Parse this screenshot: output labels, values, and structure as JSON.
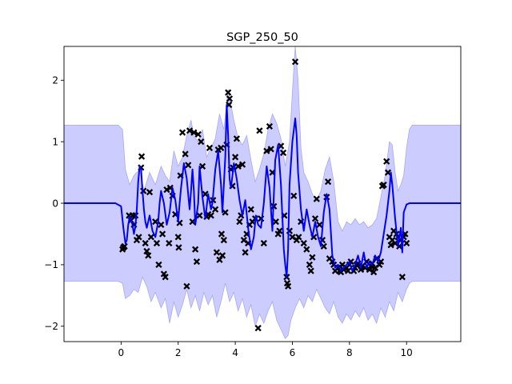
{
  "chart_data": {
    "type": "line",
    "title": "SGP_250_50",
    "xlabel": "",
    "ylabel": "",
    "xlim": [
      -2.0,
      11.9
    ],
    "ylim": [
      -2.25,
      2.55
    ],
    "xticks": [
      0,
      2,
      4,
      6,
      8,
      10
    ],
    "yticks": [
      -2,
      -1,
      0,
      1,
      2
    ],
    "xtick_labels": [
      "0",
      "2",
      "4",
      "6",
      "8",
      "10"
    ],
    "ytick_labels": [
      "−2",
      "−1",
      "0",
      "1",
      "2"
    ],
    "grid": false,
    "legend": "none",
    "colors": {
      "mean_line": "#0000ff",
      "band_fill": "#ccccff",
      "band_edge": "#a8a8f4",
      "points": "#000000"
    },
    "series": [
      {
        "kind": "mean",
        "x": [
          -2.0,
          -1.0,
          -0.2,
          0.0,
          0.08,
          0.15,
          0.2,
          0.25,
          0.3,
          0.38,
          0.45,
          0.5,
          0.55,
          0.6,
          0.65,
          0.7,
          0.75,
          0.8,
          0.85,
          0.9,
          1.0,
          1.1,
          1.2,
          1.3,
          1.35,
          1.4,
          1.5,
          1.6,
          1.7,
          1.8,
          1.9,
          2.0,
          2.05,
          2.1,
          2.2,
          2.3,
          2.4,
          2.45,
          2.5,
          2.55,
          2.6,
          2.7,
          2.75,
          2.85,
          2.95,
          3.05,
          3.15,
          3.2,
          3.3,
          3.4,
          3.5,
          3.55,
          3.65,
          3.7,
          3.75,
          3.8,
          3.85,
          3.95,
          4.05,
          4.15,
          4.25,
          4.35,
          4.45,
          4.55,
          4.65,
          4.72,
          4.8,
          4.9,
          5.0,
          5.1,
          5.2,
          5.3,
          5.4,
          5.5,
          5.6,
          5.7,
          5.75,
          5.8,
          5.85,
          5.9,
          6.0,
          6.1,
          6.15,
          6.2,
          6.3,
          6.4,
          6.5,
          6.6,
          6.7,
          6.8,
          6.9,
          7.0,
          7.1,
          7.2,
          7.3,
          7.4,
          7.5,
          7.6,
          7.7,
          7.8,
          7.9,
          8.0,
          8.1,
          8.2,
          8.3,
          8.4,
          8.5,
          8.6,
          8.7,
          8.8,
          8.9,
          9.0,
          9.1,
          9.2,
          9.3,
          9.4,
          9.45,
          9.5,
          9.6,
          9.7,
          9.8,
          9.85,
          9.9,
          10.0,
          10.1,
          10.2,
          10.4,
          10.8,
          11.9
        ],
        "values": [
          0.0,
          0.0,
          0.0,
          -0.05,
          -0.4,
          -0.65,
          -0.6,
          -0.35,
          -0.22,
          -0.3,
          -0.5,
          -0.38,
          -0.1,
          0.35,
          0.6,
          0.55,
          0.2,
          -0.1,
          -0.3,
          -0.4,
          -0.2,
          -0.45,
          -0.55,
          -0.3,
          0.0,
          0.2,
          0.0,
          -0.35,
          -0.15,
          0.25,
          0.05,
          -0.3,
          0.0,
          0.25,
          0.65,
          0.4,
          -0.1,
          0.2,
          0.55,
          0.2,
          -0.35,
          0.0,
          0.6,
          0.1,
          -0.25,
          0.15,
          -0.1,
          0.0,
          0.55,
          0.85,
          0.3,
          -0.15,
          0.75,
          1.6,
          1.1,
          0.4,
          0.25,
          0.65,
          0.4,
          0.05,
          -0.2,
          0.05,
          -0.4,
          -0.75,
          -0.55,
          -0.2,
          -0.35,
          -0.4,
          0.0,
          0.6,
          0.25,
          -0.45,
          0.7,
          0.95,
          0.3,
          -0.75,
          -1.0,
          -1.2,
          -0.75,
          0.3,
          1.0,
          1.38,
          1.1,
          0.5,
          -0.1,
          -0.45,
          -0.1,
          -0.35,
          -0.55,
          -0.3,
          -0.55,
          -0.7,
          -0.15,
          0.15,
          -0.1,
          -0.85,
          -1.05,
          -1.0,
          -1.1,
          -1.05,
          -1.0,
          -0.95,
          -1.1,
          -1.0,
          -0.85,
          -1.05,
          -0.8,
          -1.05,
          -0.95,
          -1.0,
          -0.85,
          -0.95,
          -0.8,
          -0.5,
          -0.2,
          0.2,
          0.5,
          0.3,
          -0.25,
          -0.7,
          -0.4,
          -0.8,
          -0.15,
          -0.02,
          0.0,
          0.0,
          0.0,
          0.0,
          0.0
        ]
      },
      {
        "kind": "upper",
        "x": [
          -2.0,
          -0.1,
          0.05,
          0.15,
          0.3,
          0.45,
          0.65,
          0.8,
          1.0,
          1.2,
          1.4,
          1.55,
          1.7,
          1.85,
          2.0,
          2.15,
          2.3,
          2.45,
          2.55,
          2.7,
          2.85,
          3.0,
          3.15,
          3.3,
          3.45,
          3.6,
          3.75,
          3.85,
          3.95,
          4.1,
          4.25,
          4.4,
          4.55,
          4.7,
          4.85,
          5.0,
          5.15,
          5.3,
          5.45,
          5.6,
          5.75,
          5.9,
          6.0,
          6.1,
          6.2,
          6.3,
          6.4,
          6.55,
          6.7,
          6.85,
          7.0,
          7.15,
          7.3,
          7.45,
          7.6,
          7.75,
          7.9,
          8.05,
          8.2,
          8.35,
          8.5,
          8.65,
          8.8,
          8.95,
          9.1,
          9.25,
          9.4,
          9.5,
          9.6,
          9.7,
          9.8,
          9.9,
          10.0,
          10.1,
          10.2,
          10.4,
          11.9
        ],
        "values": [
          1.27,
          1.27,
          1.2,
          0.55,
          0.3,
          0.45,
          0.55,
          0.2,
          0.5,
          0.3,
          0.6,
          0.45,
          0.35,
          0.85,
          0.6,
          0.75,
          1.1,
          1.35,
          1.1,
          1.0,
          1.2,
          0.75,
          0.9,
          1.05,
          1.45,
          1.2,
          1.85,
          1.6,
          1.35,
          1.05,
          0.95,
          1.1,
          0.7,
          0.35,
          0.55,
          0.8,
          1.2,
          1.45,
          1.3,
          1.05,
          0.6,
          1.0,
          1.8,
          2.55,
          2.0,
          0.9,
          0.5,
          0.35,
          0.15,
          0.05,
          0.2,
          0.55,
          0.75,
          0.35,
          -0.3,
          -0.45,
          -0.3,
          -0.35,
          -0.25,
          -0.35,
          -0.3,
          -0.4,
          -0.35,
          -0.25,
          0.1,
          0.45,
          1.0,
          0.95,
          0.5,
          0.2,
          0.3,
          0.45,
          0.9,
          1.2,
          1.27,
          1.27,
          1.27
        ]
      },
      {
        "kind": "lower",
        "x": [
          -2.0,
          -0.1,
          0.05,
          0.15,
          0.3,
          0.45,
          0.6,
          0.75,
          0.9,
          1.05,
          1.2,
          1.4,
          1.55,
          1.7,
          1.85,
          2.0,
          2.15,
          2.3,
          2.45,
          2.6,
          2.75,
          2.9,
          3.05,
          3.2,
          3.35,
          3.5,
          3.65,
          3.8,
          3.95,
          4.1,
          4.25,
          4.4,
          4.55,
          4.7,
          4.85,
          5.0,
          5.15,
          5.3,
          5.45,
          5.6,
          5.75,
          5.85,
          5.95,
          6.1,
          6.25,
          6.4,
          6.55,
          6.7,
          6.85,
          7.0,
          7.15,
          7.3,
          7.45,
          7.6,
          7.75,
          7.9,
          8.05,
          8.2,
          8.35,
          8.5,
          8.65,
          8.8,
          8.95,
          9.1,
          9.25,
          9.4,
          9.55,
          9.7,
          9.85,
          10.0,
          10.1,
          10.2,
          10.4,
          11.9
        ],
        "values": [
          -1.27,
          -1.27,
          -1.3,
          -1.55,
          -1.5,
          -1.4,
          -1.45,
          -1.2,
          -1.35,
          -1.6,
          -1.45,
          -1.7,
          -1.55,
          -1.95,
          -1.6,
          -1.85,
          -1.65,
          -1.4,
          -1.7,
          -1.5,
          -1.75,
          -1.45,
          -1.65,
          -1.5,
          -1.85,
          -1.6,
          -1.3,
          -1.6,
          -1.45,
          -1.75,
          -1.55,
          -1.85,
          -1.65,
          -2.0,
          -1.8,
          -1.95,
          -1.75,
          -1.6,
          -1.9,
          -2.05,
          -2.2,
          -2.15,
          -1.9,
          -1.7,
          -1.55,
          -1.7,
          -1.5,
          -1.6,
          -1.4,
          -1.55,
          -1.7,
          -1.8,
          -1.6,
          -1.85,
          -1.95,
          -1.8,
          -1.9,
          -1.75,
          -1.85,
          -1.7,
          -1.9,
          -1.8,
          -1.95,
          -1.7,
          -1.85,
          -1.6,
          -1.75,
          -1.45,
          -1.6,
          -1.4,
          -1.3,
          -1.27,
          -1.27,
          -1.27
        ]
      },
      {
        "kind": "observations",
        "marker": "x",
        "x": [
          0.05,
          0.08,
          0.12,
          0.28,
          0.35,
          0.4,
          0.45,
          0.5,
          0.55,
          0.62,
          0.7,
          0.72,
          0.78,
          0.85,
          0.9,
          0.95,
          1.0,
          1.05,
          1.2,
          1.25,
          1.32,
          1.4,
          1.45,
          1.5,
          1.55,
          1.6,
          1.68,
          1.72,
          1.8,
          1.9,
          2.0,
          2.02,
          2.05,
          2.08,
          2.15,
          2.25,
          2.3,
          2.35,
          2.4,
          2.5,
          2.55,
          2.6,
          2.65,
          2.7,
          2.75,
          2.8,
          2.85,
          2.95,
          3.0,
          3.05,
          3.1,
          3.15,
          3.22,
          3.3,
          3.35,
          3.4,
          3.45,
          3.5,
          3.52,
          3.55,
          3.6,
          3.65,
          3.7,
          3.75,
          3.78,
          3.8,
          3.85,
          3.9,
          3.92,
          4.0,
          4.05,
          4.1,
          4.15,
          4.2,
          4.25,
          4.3,
          4.35,
          4.4,
          4.45,
          4.5,
          4.55,
          4.6,
          4.7,
          4.8,
          4.85,
          4.9,
          5.0,
          5.1,
          5.2,
          5.25,
          5.3,
          5.35,
          5.42,
          5.5,
          5.55,
          5.6,
          5.68,
          5.72,
          5.8,
          5.82,
          5.85,
          5.9,
          6.0,
          6.05,
          6.1,
          6.15,
          6.22,
          6.3,
          6.4,
          6.5,
          6.6,
          6.65,
          6.7,
          6.75,
          6.8,
          6.85,
          6.95,
          7.05,
          7.1,
          7.2,
          7.25,
          7.3,
          7.4,
          7.45,
          7.5,
          7.6,
          7.65,
          7.7,
          7.75,
          7.8,
          7.9,
          7.95,
          8.0,
          8.05,
          8.15,
          8.2,
          8.25,
          8.3,
          8.4,
          8.45,
          8.55,
          8.6,
          8.7,
          8.75,
          8.8,
          8.85,
          8.9,
          8.95,
          9.05,
          9.1,
          9.15,
          9.2,
          9.3,
          9.35,
          9.4,
          9.45,
          9.5,
          9.55,
          9.6,
          9.65,
          9.7,
          9.75,
          9.8,
          9.85,
          9.9,
          9.95,
          10.0
        ],
        "values": [
          -0.75,
          -0.72,
          -0.7,
          -0.2,
          -0.28,
          -0.2,
          -0.35,
          -0.2,
          -0.6,
          -0.55,
          0.58,
          0.76,
          0.2,
          -0.65,
          -0.78,
          -0.85,
          0.18,
          -0.55,
          -0.3,
          -0.65,
          -1.0,
          -0.35,
          -0.5,
          -1.15,
          -1.2,
          0.22,
          -0.65,
          0.25,
          0.12,
          -0.18,
          -0.55,
          -0.72,
          -0.32,
          0.45,
          1.15,
          0.8,
          -1.35,
          0.62,
          1.18,
          -0.3,
          1.15,
          -0.75,
          -0.95,
          1.12,
          -0.2,
          1.0,
          0.6,
          0.15,
          -0.22,
          -0.18,
          0.9,
          -0.2,
          0.05,
          -0.1,
          -0.8,
          0.87,
          -0.92,
          0.9,
          -0.5,
          -0.85,
          -0.6,
          -0.15,
          0.95,
          1.8,
          1.6,
          1.7,
          0.55,
          0.28,
          0.58,
          0.75,
          1.05,
          0.6,
          -0.3,
          -0.2,
          0.63,
          -0.6,
          -0.8,
          -0.5,
          -0.65,
          -0.35,
          -0.1,
          -0.3,
          -0.25,
          -2.03,
          1.18,
          -0.25,
          -0.65,
          0.85,
          1.25,
          0.88,
          0.5,
          -0.05,
          -0.3,
          -0.5,
          -0.45,
          0.93,
          0.82,
          -0.2,
          -1.2,
          -1.3,
          -1.35,
          -0.45,
          -0.55,
          0.12,
          2.3,
          -0.6,
          -0.55,
          -0.3,
          -0.65,
          -0.75,
          -1.0,
          -1.1,
          -0.88,
          -0.55,
          -0.25,
          0.07,
          -0.35,
          -0.6,
          -0.7,
          0.1,
          0.35,
          -0.9,
          -0.95,
          -1.0,
          -1.1,
          -1.05,
          -1.1,
          -1.12,
          -1.0,
          -1.08,
          -1.05,
          -1.1,
          -1.0,
          -0.95,
          -1.1,
          -1.05,
          -1.0,
          -0.98,
          -1.08,
          -1.02,
          -1.05,
          -0.95,
          -1.08,
          -1.02,
          -0.98,
          -1.12,
          -1.05,
          -0.9,
          -1.0,
          -0.95,
          0.28,
          0.3,
          0.68,
          0.5,
          -0.55,
          -0.68,
          -0.6,
          -0.45,
          -0.65,
          -0.5,
          -0.55,
          -0.7,
          -0.6,
          -1.2,
          -0.55,
          -0.5,
          -0.65
        ]
      }
    ]
  }
}
